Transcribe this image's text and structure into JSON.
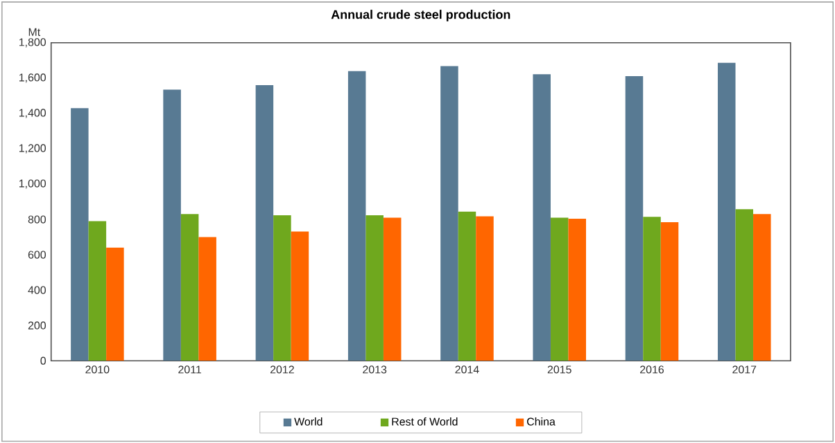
{
  "chart_data": {
    "type": "bar",
    "title": "Annual crude steel production",
    "ylabel": "Mt",
    "categories": [
      "2010",
      "2011",
      "2012",
      "2013",
      "2014",
      "2015",
      "2016",
      "2017"
    ],
    "series": [
      {
        "name": "World",
        "color": "#587a93",
        "values": [
          1430,
          1535,
          1560,
          1640,
          1668,
          1622,
          1611,
          1687
        ]
      },
      {
        "name": "Rest of World",
        "color": "#6fa81e",
        "values": [
          790,
          830,
          824,
          824,
          844,
          810,
          815,
          858
        ]
      },
      {
        "name": "China",
        "color": "#ff6600",
        "values": [
          640,
          700,
          731,
          810,
          818,
          804,
          784,
          830
        ]
      }
    ],
    "ylim": [
      0,
      1800
    ],
    "yticks": [
      {
        "value": 0,
        "label": "0"
      },
      {
        "value": 200,
        "label": "200"
      },
      {
        "value": 400,
        "label": "400"
      },
      {
        "value": 600,
        "label": "600"
      },
      {
        "value": 800,
        "label": "800"
      },
      {
        "value": 1000,
        "label": "1,000"
      },
      {
        "value": 1200,
        "label": "1,200"
      },
      {
        "value": 1400,
        "label": "1,400"
      },
      {
        "value": 1600,
        "label": "1,600"
      },
      {
        "value": 1800,
        "label": "1,800"
      }
    ],
    "grid": false,
    "legend": "bottom"
  }
}
